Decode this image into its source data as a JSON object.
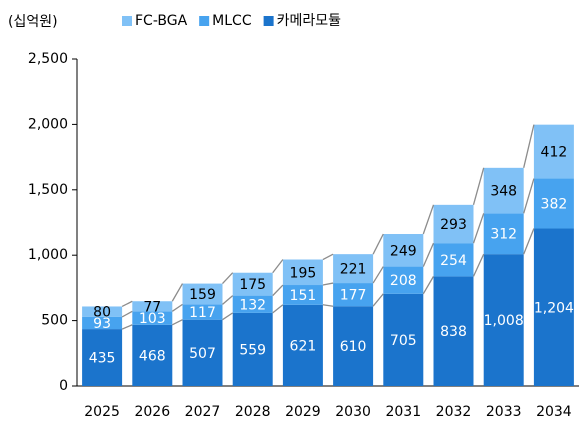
{
  "chart_data": {
    "type": "stacked_bar",
    "y_unit_label": "(십억원)",
    "categories": [
      "2025",
      "2026",
      "2027",
      "2028",
      "2029",
      "2030",
      "2031",
      "2032",
      "2033",
      "2034"
    ],
    "series": [
      {
        "name": "카메라모듈",
        "color": "#1b74cc",
        "label_color": "#ffffff",
        "values": [
          435,
          468,
          507,
          559,
          621,
          610,
          705,
          838,
          1008,
          1204
        ],
        "value_labels": [
          "435",
          "468",
          "507",
          "559",
          "621",
          "610",
          "705",
          "838",
          "1,008",
          "1,204"
        ]
      },
      {
        "name": "MLCC",
        "color": "#47a3ef",
        "label_color": "#ffffff",
        "values": [
          93,
          103,
          117,
          132,
          151,
          177,
          208,
          254,
          312,
          382
        ]
      },
      {
        "name": "FC-BGA",
        "color": "#80c1f6",
        "label_color": "#000000",
        "values": [
          80,
          77,
          159,
          175,
          195,
          221,
          249,
          293,
          348,
          412
        ]
      }
    ],
    "ylim": [
      0,
      2500
    ],
    "yticks": [
      0,
      500,
      {
        "value": 1000,
        "label": "1,000"
      },
      {
        "value": 1500,
        "label": "1,500"
      },
      {
        "value": 2000,
        "label": "2,000"
      },
      {
        "value": 2500,
        "label": "2,500"
      }
    ],
    "connectors": true
  }
}
